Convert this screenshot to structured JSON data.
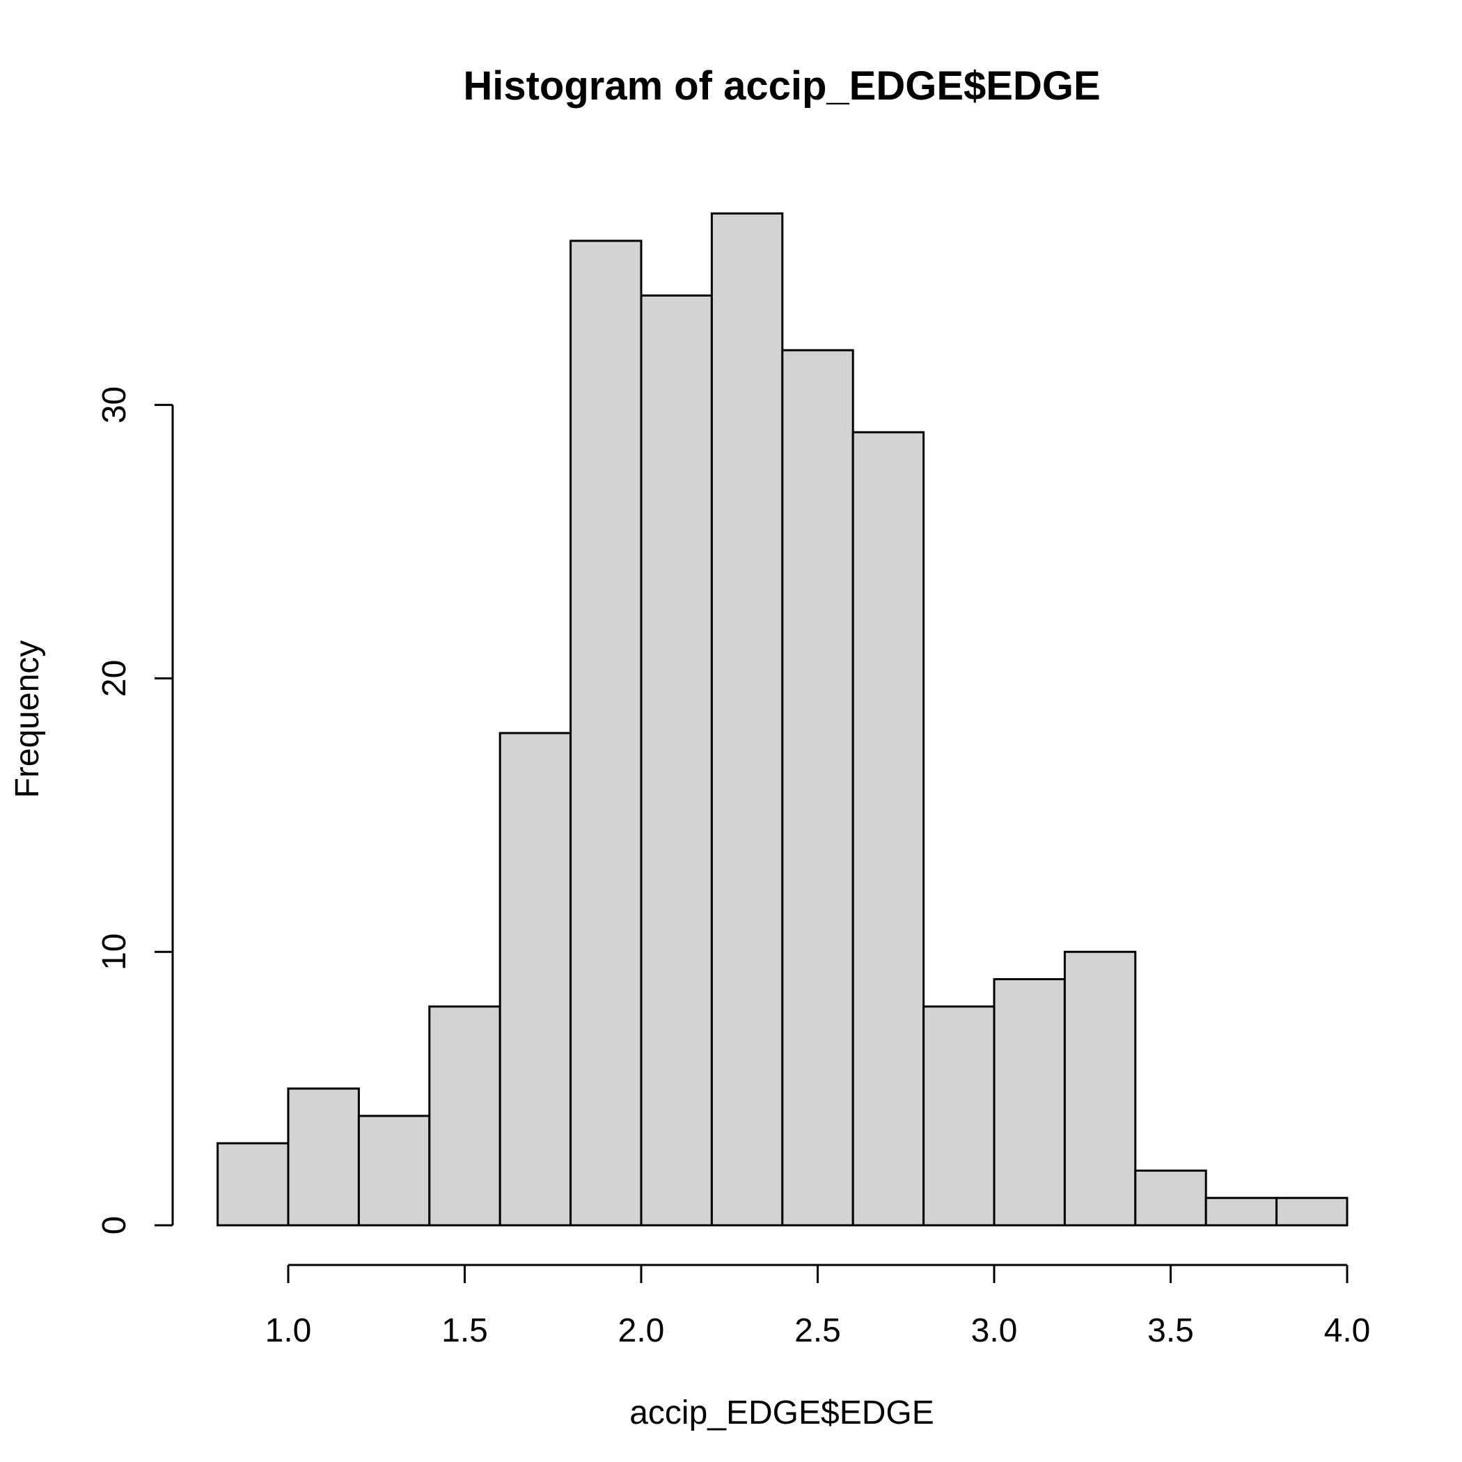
{
  "chart_data": {
    "type": "bar",
    "title": "Histogram of accip_EDGE$EDGE",
    "xlabel": "accip_EDGE$EDGE",
    "ylabel": "Frequency",
    "bins": [
      {
        "start": 0.8,
        "end": 1.0,
        "count": 3
      },
      {
        "start": 1.0,
        "end": 1.2,
        "count": 5
      },
      {
        "start": 1.2,
        "end": 1.4,
        "count": 4
      },
      {
        "start": 1.4,
        "end": 1.6,
        "count": 8
      },
      {
        "start": 1.6,
        "end": 1.8,
        "count": 18
      },
      {
        "start": 1.8,
        "end": 2.0,
        "count": 36
      },
      {
        "start": 2.0,
        "end": 2.2,
        "count": 34
      },
      {
        "start": 2.2,
        "end": 2.4,
        "count": 37
      },
      {
        "start": 2.4,
        "end": 2.6,
        "count": 32
      },
      {
        "start": 2.6,
        "end": 2.8,
        "count": 29
      },
      {
        "start": 2.8,
        "end": 3.0,
        "count": 8
      },
      {
        "start": 3.0,
        "end": 3.2,
        "count": 9
      },
      {
        "start": 3.2,
        "end": 3.4,
        "count": 10
      },
      {
        "start": 3.4,
        "end": 3.6,
        "count": 2
      },
      {
        "start": 3.6,
        "end": 3.8,
        "count": 1
      },
      {
        "start": 3.8,
        "end": 4.0,
        "count": 1
      }
    ],
    "xticks": [
      1.0,
      1.5,
      2.0,
      2.5,
      3.0,
      3.5,
      4.0
    ],
    "xtick_labels": [
      "1.0",
      "1.5",
      "2.0",
      "2.5",
      "3.0",
      "3.5",
      "4.0"
    ],
    "yticks": [
      0,
      10,
      20,
      30
    ],
    "ytick_labels": [
      "0",
      "10",
      "20",
      "30"
    ],
    "xlim": [
      0.8,
      4.0
    ],
    "ylim": [
      0,
      37
    ],
    "grid": false,
    "bar_color": "#d3d3d3",
    "edge_color": "#000000"
  }
}
